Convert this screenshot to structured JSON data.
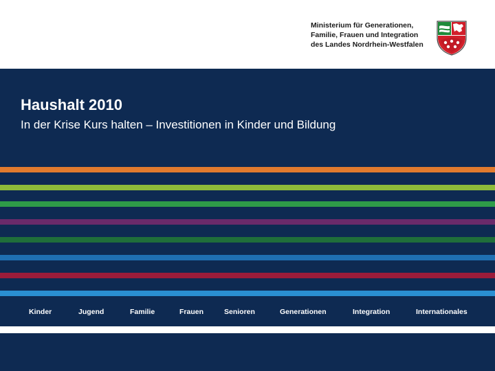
{
  "header": {
    "ministry_lines": [
      "Ministerium für Generationen,",
      "Familie, Frauen und Integration",
      "des Landes Nordrhein-Westfalen"
    ]
  },
  "slide": {
    "title": "Haushalt 2010",
    "subtitle": "In der Krise Kurs halten – Investitionen in Kinder und Bildung"
  },
  "stripes": [
    {
      "name": "orange",
      "color": "#e07a2e"
    },
    {
      "name": "lime",
      "color": "#8dbb3a"
    },
    {
      "name": "green",
      "color": "#2e9c48"
    },
    {
      "name": "purple",
      "color": "#6a2a6a"
    },
    {
      "name": "dark-green",
      "color": "#1f6e3a"
    },
    {
      "name": "blue",
      "color": "#1f6fb2"
    },
    {
      "name": "crimson",
      "color": "#9b1c3a"
    },
    {
      "name": "light-blue",
      "color": "#2a8fd2"
    }
  ],
  "nav": {
    "items": [
      "Kinder",
      "Jugend",
      "Familie",
      "Frauen",
      "Senioren",
      "Generationen",
      "Integration",
      "Internationales"
    ]
  },
  "colors": {
    "background": "#0e2a52",
    "text": "#ffffff"
  }
}
